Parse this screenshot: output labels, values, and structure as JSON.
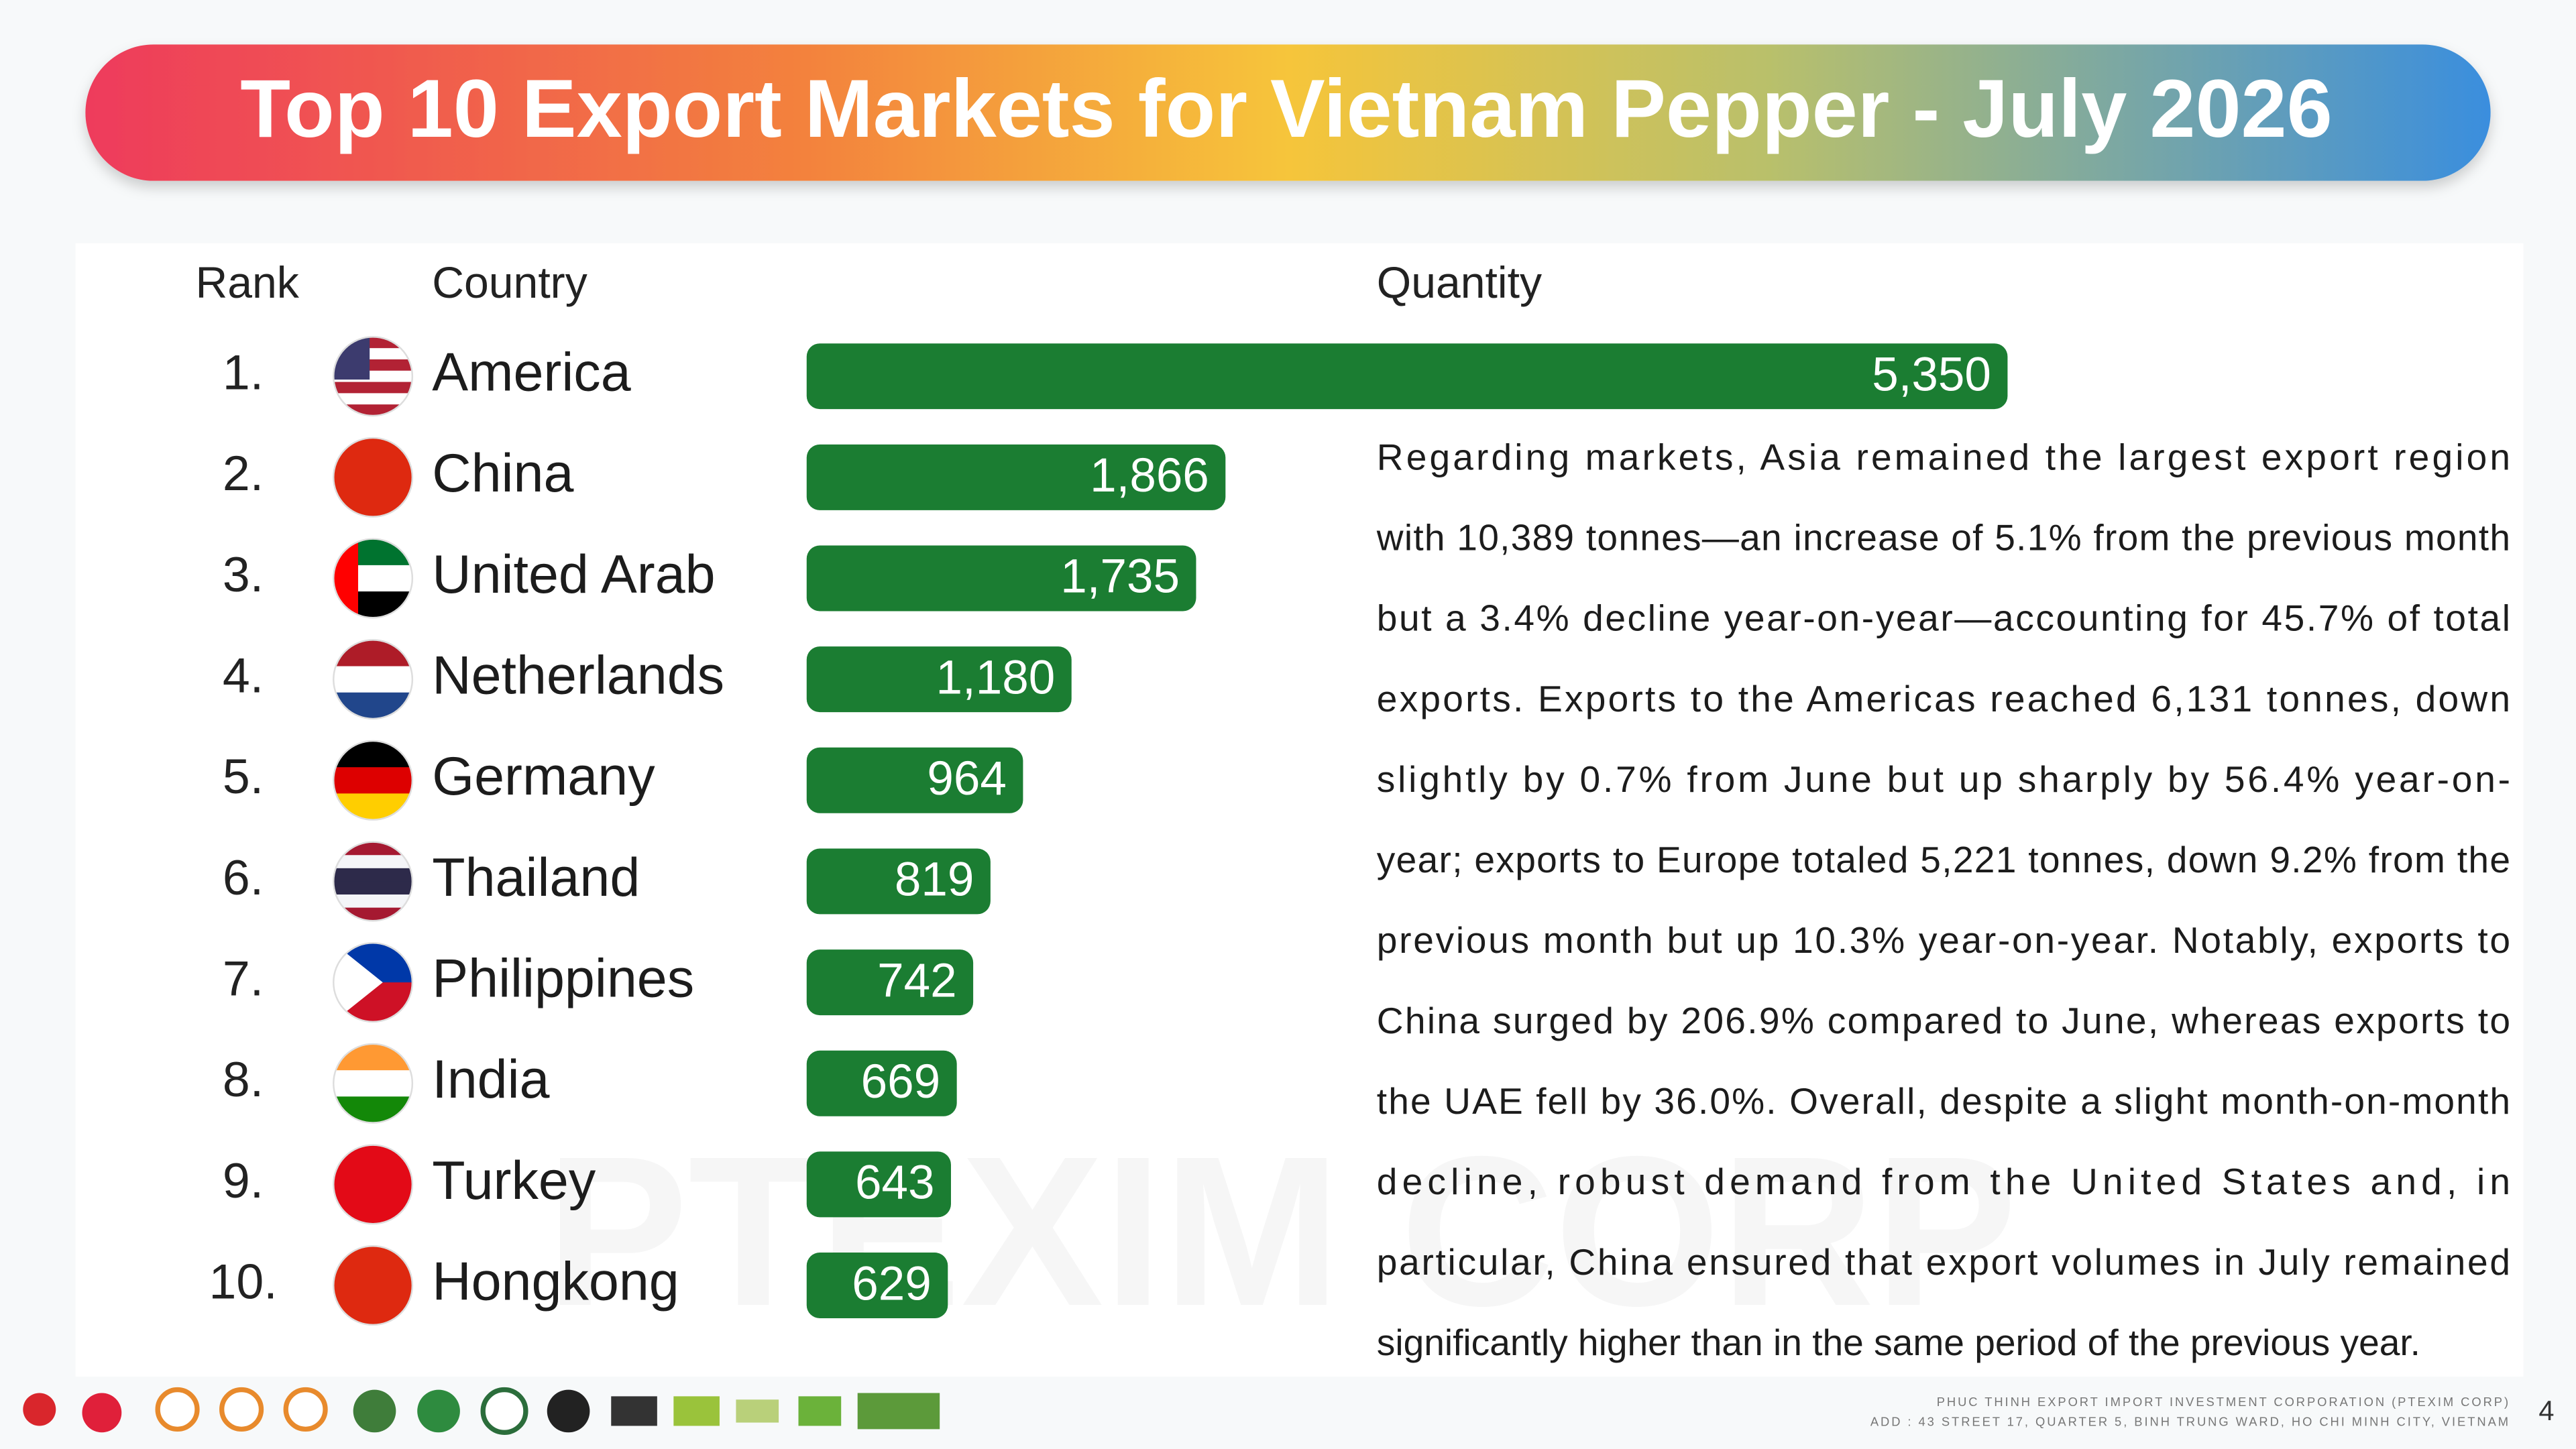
{
  "chart_data": {
    "type": "bar",
    "title": "Top 10 Export Markets for Vietnam Pepper - July 2026",
    "column_headers": [
      "Rank",
      "Country",
      "Quantity"
    ],
    "ranks": [
      "1.",
      "2.",
      "3.",
      "4.",
      "5.",
      "6.",
      "7.",
      "8.",
      "9.",
      "10."
    ],
    "categories": [
      "America",
      "China",
      "United Arab",
      "Netherlands",
      "Germany",
      "Thailand",
      "Philippines",
      "India",
      "Turkey",
      "Hongkong"
    ],
    "values": [
      5350,
      1866,
      1735,
      1180,
      964,
      819,
      742,
      669,
      643,
      629
    ],
    "value_labels": [
      "5,350",
      "1,866",
      "1,735",
      "1,180",
      "964",
      "819",
      "742",
      "669",
      "643",
      "629"
    ],
    "color": "#1b7d32",
    "text_lines": [
      "Regarding markets, Asia remained the largest export region",
      "with 10,389 tonnes—an increase of 5.1% from the previous month",
      "but a 3.4% decline year-on-year—accounting for 45.7% of total",
      "exports. Exports to the Americas reached 6,131 tonnes, down",
      "slightly by 0.7% from June but up sharply by 56.4% year-on-",
      "year; exports to Europe totaled 5,221 tonnes, down 9.2% from the",
      "previous month but up 10.3% year-on-year. Notably, exports to",
      "China surged by 206.9% compared to June, whereas exports to",
      "the UAE fell by 36.0%. Overall, despite a slight month-on-month",
      "decline, robust demand from the United States and, in",
      "particular, China ensured that export volumes in July remained",
      "significantly higher than in the same period of the previous year."
    ],
    "watermark": "PTEXIM CORP",
    "footer_lines": [
      "PHUC THINH EXPORT IMPORT INVESTMENT CORPORATION (PTEXIM CORP)",
      "ADD : 43 STREET 17, QUARTER 5, BINH TRUNG WARD, HO CHI MINH CITY, VIETNAM"
    ],
    "page_number": "4"
  }
}
